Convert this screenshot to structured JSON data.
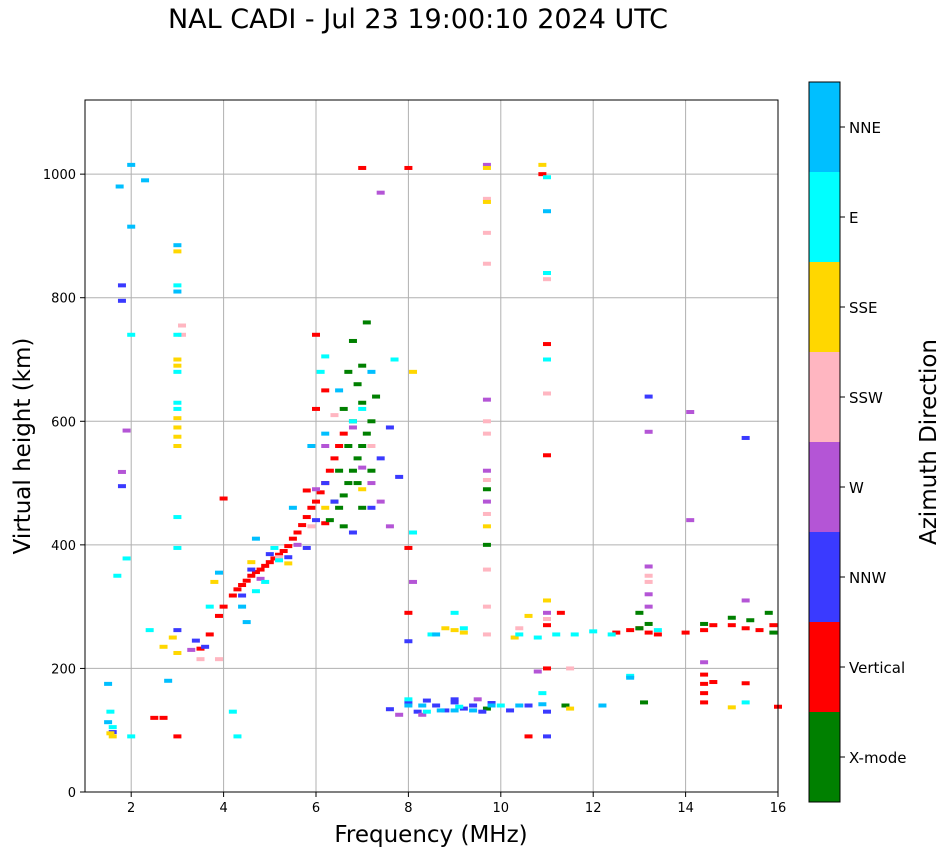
{
  "chart_data": {
    "type": "scatter",
    "title": "NAL CADI - Jul 23 19:00:10 2024 UTC",
    "xlabel": "Frequency (MHz)",
    "ylabel": "Virtual height (km)",
    "xlim": [
      1,
      16
    ],
    "ylim": [
      0,
      1120
    ],
    "xticks": [
      2,
      4,
      6,
      8,
      10,
      12,
      14,
      16
    ],
    "yticks": [
      0,
      200,
      400,
      600,
      800,
      1000
    ],
    "grid": true,
    "colorbar": {
      "label": "Azimuth Direction",
      "entries": [
        {
          "name": "X-mode",
          "color": "#008000"
        },
        {
          "name": "Vertical",
          "color": "#ff0000"
        },
        {
          "name": "NNW",
          "color": "#3a3aff"
        },
        {
          "name": "W",
          "color": "#b455d6"
        },
        {
          "name": "SSW",
          "color": "#ffb6c1"
        },
        {
          "name": "SSE",
          "color": "#ffd700"
        },
        {
          "name": "E",
          "color": "#00ffff"
        },
        {
          "name": "NNE",
          "color": "#00bfff"
        }
      ]
    },
    "series": [
      {
        "name": "Vertical",
        "points": [
          [
            3.5,
            232
          ],
          [
            3.7,
            255
          ],
          [
            3.9,
            285
          ],
          [
            4.0,
            300
          ],
          [
            4.2,
            318
          ],
          [
            4.3,
            328
          ],
          [
            4.4,
            335
          ],
          [
            4.5,
            342
          ],
          [
            4.6,
            350
          ],
          [
            4.7,
            356
          ],
          [
            4.8,
            360
          ],
          [
            4.9,
            366
          ],
          [
            5.0,
            372
          ],
          [
            5.1,
            378
          ],
          [
            5.2,
            384
          ],
          [
            5.3,
            390
          ],
          [
            5.4,
            398
          ],
          [
            5.5,
            410
          ],
          [
            5.6,
            420
          ],
          [
            5.7,
            432
          ],
          [
            5.8,
            445
          ],
          [
            5.9,
            460
          ],
          [
            6.0,
            470
          ],
          [
            6.1,
            485
          ],
          [
            6.2,
            500
          ],
          [
            6.3,
            520
          ],
          [
            6.4,
            540
          ],
          [
            6.5,
            560
          ],
          [
            6.6,
            580
          ],
          [
            6.0,
            620
          ],
          [
            6.2,
            650
          ],
          [
            6.0,
            740
          ],
          [
            7.0,
            1010
          ],
          [
            8.0,
            1010
          ],
          [
            4.0,
            475
          ],
          [
            3.0,
            90
          ],
          [
            2.5,
            120
          ],
          [
            2.7,
            120
          ],
          [
            12.5,
            258
          ],
          [
            12.8,
            262
          ],
          [
            13.0,
            265
          ],
          [
            13.2,
            258
          ],
          [
            13.4,
            255
          ],
          [
            14.0,
            258
          ],
          [
            14.4,
            262
          ],
          [
            14.6,
            270
          ],
          [
            15.0,
            270
          ],
          [
            15.3,
            265
          ],
          [
            15.6,
            262
          ],
          [
            15.9,
            270
          ],
          [
            14.4,
            190
          ],
          [
            14.4,
            175
          ],
          [
            14.4,
            160
          ],
          [
            14.4,
            145
          ],
          [
            14.6,
            178
          ],
          [
            15.3,
            176
          ],
          [
            16.0,
            138
          ],
          [
            10.6,
            90
          ],
          [
            11.0,
            200
          ],
          [
            11.0,
            545
          ],
          [
            11.0,
            725
          ],
          [
            11.3,
            290
          ],
          [
            8.0,
            395
          ],
          [
            8.0,
            290
          ],
          [
            11.0,
            270
          ],
          [
            10.9,
            1000
          ],
          [
            6.2,
            435
          ],
          [
            5.8,
            488
          ]
        ]
      },
      {
        "name": "X-mode",
        "points": [
          [
            6.3,
            440
          ],
          [
            6.5,
            460
          ],
          [
            6.6,
            480
          ],
          [
            6.7,
            500
          ],
          [
            6.8,
            520
          ],
          [
            6.9,
            540
          ],
          [
            7.0,
            560
          ],
          [
            7.1,
            580
          ],
          [
            7.2,
            600
          ],
          [
            7.0,
            630
          ],
          [
            6.9,
            660
          ],
          [
            7.0,
            690
          ],
          [
            6.8,
            730
          ],
          [
            7.1,
            760
          ],
          [
            6.5,
            520
          ],
          [
            6.4,
            470
          ],
          [
            6.6,
            430
          ],
          [
            6.8,
            600
          ],
          [
            7.2,
            520
          ],
          [
            6.7,
            560
          ],
          [
            6.9,
            500
          ],
          [
            7.3,
            640
          ],
          [
            6.6,
            620
          ],
          [
            6.7,
            680
          ],
          [
            7.0,
            460
          ],
          [
            13.0,
            290
          ],
          [
            13.2,
            272
          ],
          [
            14.4,
            272
          ],
          [
            15.0,
            282
          ],
          [
            15.4,
            278
          ],
          [
            15.8,
            290
          ],
          [
            15.9,
            258
          ],
          [
            13.1,
            145
          ],
          [
            11.4,
            140
          ],
          [
            9.7,
            135
          ],
          [
            9.7,
            400
          ],
          [
            9.7,
            490
          ],
          [
            13.0,
            265
          ]
        ]
      },
      {
        "name": "NNW",
        "points": [
          [
            1.6,
            97
          ],
          [
            1.8,
            820
          ],
          [
            1.8,
            795
          ],
          [
            1.8,
            495
          ],
          [
            3.0,
            262
          ],
          [
            3.4,
            245
          ],
          [
            3.6,
            235
          ],
          [
            4.4,
            318
          ],
          [
            4.6,
            360
          ],
          [
            5.0,
            385
          ],
          [
            5.4,
            380
          ],
          [
            5.8,
            395
          ],
          [
            6.0,
            440
          ],
          [
            6.4,
            470
          ],
          [
            6.8,
            420
          ],
          [
            7.2,
            460
          ],
          [
            7.4,
            540
          ],
          [
            7.6,
            590
          ],
          [
            7.8,
            510
          ],
          [
            8.0,
            145
          ],
          [
            8.2,
            130
          ],
          [
            8.4,
            148
          ],
          [
            8.6,
            140
          ],
          [
            8.8,
            132
          ],
          [
            9.0,
            145
          ],
          [
            9.2,
            135
          ],
          [
            9.4,
            140
          ],
          [
            9.6,
            130
          ],
          [
            9.8,
            144
          ],
          [
            10.2,
            132
          ],
          [
            10.6,
            140
          ],
          [
            11.0,
            90
          ],
          [
            11.0,
            130
          ],
          [
            15.3,
            573
          ],
          [
            13.2,
            640
          ],
          [
            9.0,
            150
          ],
          [
            7.6,
            134
          ],
          [
            8.0,
            244
          ],
          [
            6.2,
            500
          ]
        ]
      },
      {
        "name": "W",
        "points": [
          [
            1.8,
            518
          ],
          [
            1.9,
            585
          ],
          [
            3.3,
            230
          ],
          [
            4.8,
            345
          ],
          [
            5.6,
            400
          ],
          [
            6.0,
            490
          ],
          [
            6.2,
            560
          ],
          [
            6.8,
            590
          ],
          [
            7.0,
            525
          ],
          [
            7.2,
            500
          ],
          [
            7.4,
            470
          ],
          [
            7.6,
            430
          ],
          [
            8.1,
            340
          ],
          [
            9.7,
            470
          ],
          [
            9.7,
            520
          ],
          [
            9.7,
            635
          ],
          [
            9.7,
            1015
          ],
          [
            13.2,
            365
          ],
          [
            13.2,
            320
          ],
          [
            13.2,
            300
          ],
          [
            15.3,
            310
          ],
          [
            14.4,
            210
          ],
          [
            14.1,
            440
          ],
          [
            14.1,
            615
          ],
          [
            13.2,
            583
          ],
          [
            8.3,
            125
          ],
          [
            9.5,
            150
          ],
          [
            10.8,
            195
          ],
          [
            7.4,
            970
          ],
          [
            7.8,
            125
          ],
          [
            11.0,
            290
          ]
        ]
      },
      {
        "name": "SSW",
        "points": [
          [
            3.1,
            755
          ],
          [
            3.1,
            740
          ],
          [
            3.5,
            215
          ],
          [
            3.9,
            215
          ],
          [
            5.2,
            380
          ],
          [
            5.9,
            430
          ],
          [
            6.4,
            610
          ],
          [
            7.2,
            560
          ],
          [
            9.7,
            905
          ],
          [
            9.7,
            855
          ],
          [
            9.7,
            960
          ],
          [
            9.7,
            580
          ],
          [
            9.7,
            600
          ],
          [
            9.7,
            505
          ],
          [
            9.7,
            450
          ],
          [
            9.7,
            360
          ],
          [
            9.7,
            300
          ],
          [
            11.0,
            830
          ],
          [
            11.0,
            645
          ],
          [
            11.0,
            280
          ],
          [
            9.7,
            255
          ],
          [
            13.2,
            350
          ],
          [
            13.2,
            340
          ],
          [
            10.4,
            265
          ],
          [
            11.5,
            200
          ]
        ]
      },
      {
        "name": "SSE",
        "points": [
          [
            1.55,
            95
          ],
          [
            1.6,
            90
          ],
          [
            3.0,
            700
          ],
          [
            3.0,
            690
          ],
          [
            3.0,
            560
          ],
          [
            3.0,
            575
          ],
          [
            3.0,
            590
          ],
          [
            3.0,
            605
          ],
          [
            3.0,
            875
          ],
          [
            2.9,
            250
          ],
          [
            3.0,
            225
          ],
          [
            2.7,
            235
          ],
          [
            3.8,
            340
          ],
          [
            4.6,
            372
          ],
          [
            5.4,
            370
          ],
          [
            6.2,
            460
          ],
          [
            7.0,
            490
          ],
          [
            8.1,
            680
          ],
          [
            9.0,
            262
          ],
          [
            9.2,
            258
          ],
          [
            9.7,
            1010
          ],
          [
            9.7,
            955
          ],
          [
            10.9,
            1015
          ],
          [
            11.0,
            310
          ],
          [
            10.6,
            285
          ],
          [
            8.8,
            265
          ],
          [
            11.5,
            135
          ],
          [
            15.0,
            137
          ],
          [
            9.7,
            430
          ],
          [
            10.3,
            250
          ]
        ]
      },
      {
        "name": "E",
        "points": [
          [
            1.55,
            130
          ],
          [
            1.7,
            350
          ],
          [
            1.9,
            378
          ],
          [
            2.0,
            740
          ],
          [
            3.0,
            680
          ],
          [
            3.0,
            620
          ],
          [
            3.0,
            630
          ],
          [
            3.0,
            740
          ],
          [
            3.0,
            820
          ],
          [
            3.0,
            445
          ],
          [
            3.0,
            395
          ],
          [
            2.4,
            262
          ],
          [
            3.7,
            300
          ],
          [
            4.2,
            130
          ],
          [
            4.3,
            90
          ],
          [
            4.7,
            325
          ],
          [
            4.9,
            340
          ],
          [
            5.1,
            395
          ],
          [
            5.2,
            375
          ],
          [
            6.1,
            680
          ],
          [
            6.2,
            705
          ],
          [
            6.8,
            600
          ],
          [
            7.0,
            620
          ],
          [
            7.7,
            700
          ],
          [
            8.5,
            255
          ],
          [
            9.0,
            290
          ],
          [
            9.2,
            265
          ],
          [
            10.4,
            255
          ],
          [
            10.8,
            250
          ],
          [
            11.2,
            255
          ],
          [
            11.6,
            255
          ],
          [
            12.0,
            260
          ],
          [
            12.4,
            255
          ],
          [
            12.8,
            188
          ],
          [
            13.4,
            262
          ],
          [
            8.0,
            150
          ],
          [
            8.4,
            130
          ],
          [
            9.1,
            138
          ],
          [
            10.0,
            140
          ],
          [
            11.0,
            995
          ],
          [
            11.0,
            840
          ],
          [
            11.0,
            700
          ],
          [
            8.1,
            420
          ],
          [
            1.6,
            105
          ],
          [
            2.0,
            90
          ],
          [
            15.3,
            145
          ],
          [
            10.9,
            160
          ]
        ]
      },
      {
        "name": "NNE",
        "points": [
          [
            1.5,
            113
          ],
          [
            1.5,
            175
          ],
          [
            1.75,
            980
          ],
          [
            2.0,
            1015
          ],
          [
            2.0,
            915
          ],
          [
            2.3,
            990
          ],
          [
            2.8,
            180
          ],
          [
            3.0,
            885
          ],
          [
            3.0,
            810
          ],
          [
            3.9,
            355
          ],
          [
            4.4,
            300
          ],
          [
            4.5,
            275
          ],
          [
            4.7,
            410
          ],
          [
            5.5,
            460
          ],
          [
            5.9,
            560
          ],
          [
            6.2,
            580
          ],
          [
            6.5,
            650
          ],
          [
            7.2,
            680
          ],
          [
            8.0,
            140
          ],
          [
            8.3,
            140
          ],
          [
            8.7,
            132
          ],
          [
            9.0,
            132
          ],
          [
            9.4,
            132
          ],
          [
            9.8,
            140
          ],
          [
            10.4,
            140
          ],
          [
            10.9,
            142
          ],
          [
            11.0,
            940
          ],
          [
            12.2,
            140
          ],
          [
            8.6,
            255
          ],
          [
            12.8,
            185
          ]
        ]
      }
    ]
  }
}
